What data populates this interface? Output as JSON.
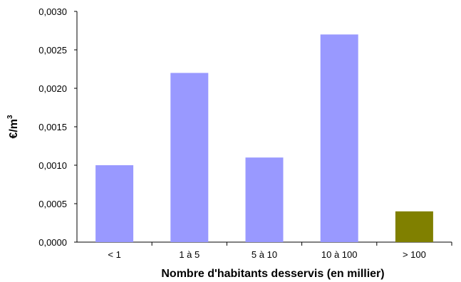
{
  "chart_data": {
    "type": "bar",
    "categories": [
      "< 1",
      "1 à 5",
      "5 à 10",
      "10 à 100",
      "> 100"
    ],
    "values": [
      0.001,
      0.0022,
      0.0011,
      0.0027,
      0.0004
    ],
    "bar_colors": [
      "#9999ff",
      "#9999ff",
      "#9999ff",
      "#9999ff",
      "#808000"
    ],
    "title": "",
    "xlabel": "Nombre d'habitants desservis (en millier)",
    "ylabel": "€/m",
    "ylabel_superscript": "3",
    "ylim": [
      0,
      0.003
    ],
    "yticks": [
      "0,0000",
      "0,0005",
      "0,0010",
      "0,0015",
      "0,0020",
      "0,0025",
      "0,0030"
    ],
    "grid": false,
    "legend": "none"
  }
}
